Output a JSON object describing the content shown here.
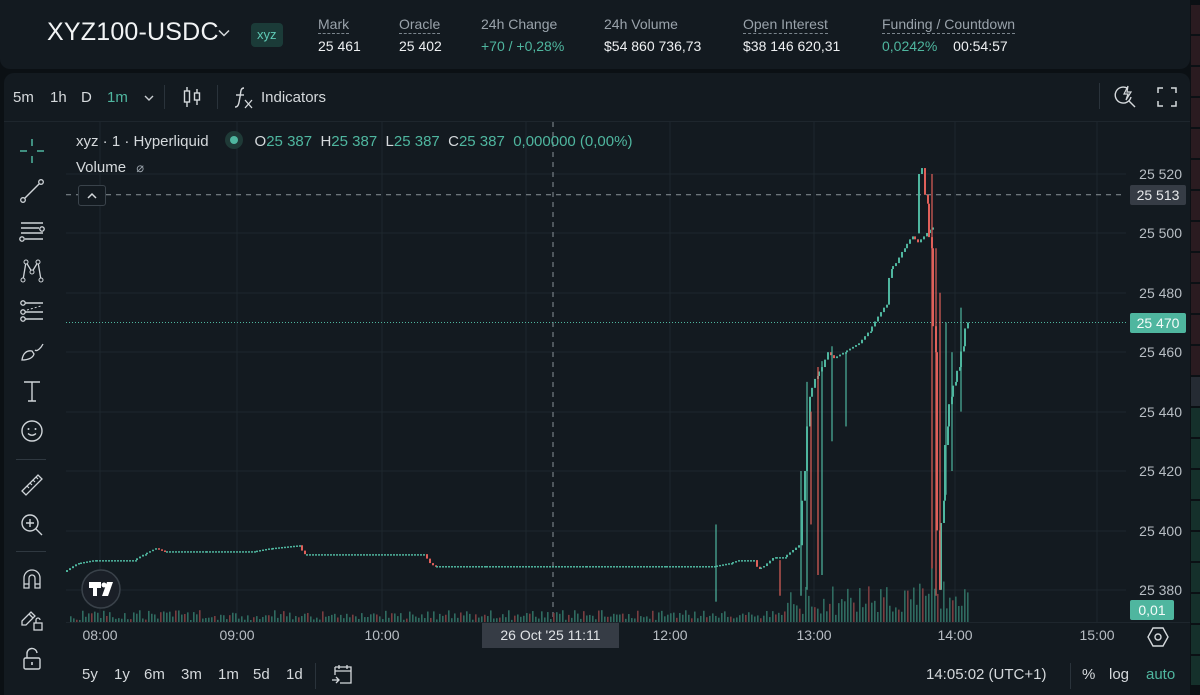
{
  "header": {
    "pair": "XYZ100-USDC",
    "badge": "xyz",
    "stats": [
      {
        "label": "Mark",
        "value": "25 461"
      },
      {
        "label": "Oracle",
        "value": "25 402"
      },
      {
        "label": "24h Change",
        "value": "+70 / +0,28%"
      },
      {
        "label": "24h Volume",
        "value": "$54 860 736,73"
      },
      {
        "label": "Open Interest",
        "value": "$38 146 620,31"
      },
      {
        "label": "Funding / Countdown",
        "value": "0,0242%",
        "countdown": "00:54:57"
      }
    ]
  },
  "topbar": {
    "timeframes": [
      "5m",
      "1h",
      "D",
      "1m"
    ],
    "active_timeframe": "1m",
    "indicators_label": "Indicators"
  },
  "legend": {
    "symbol": "xyz · 1 · Hyperliquid",
    "o_label": "O",
    "o": "25 387",
    "h_label": "H",
    "h": "25 387",
    "l_label": "L",
    "l": "25 387",
    "c_label": "C",
    "c": "25 387",
    "change": "0,000000 (0,00%)",
    "volume_label": "Volume",
    "volume_hidden_icon": "⌀"
  },
  "yaxis": {
    "ticks": [
      "25 520",
      "25 500",
      "25 480",
      "25 460",
      "25 440",
      "25 420",
      "25 400",
      "25 380"
    ],
    "crosshair_price": "25 513",
    "last_price": "25 470",
    "volume_tag": "0,01"
  },
  "xaxis": {
    "ticks": [
      "08:00",
      "09:00",
      "10:00",
      "12:00",
      "13:00",
      "14:00",
      "15:00"
    ],
    "crosshair_time": "26 Oct '25   11:11"
  },
  "bottombar": {
    "ranges": [
      "5y",
      "1y",
      "6m",
      "3m",
      "1m",
      "5d",
      "1d"
    ],
    "clock": "14:05:02 (UTC+1)",
    "percent": "%",
    "log": "log",
    "auto": "auto"
  },
  "colors": {
    "up": "#4fb69f",
    "down": "#e0605a",
    "background": "#131a20",
    "grid": "#1e272e"
  }
}
